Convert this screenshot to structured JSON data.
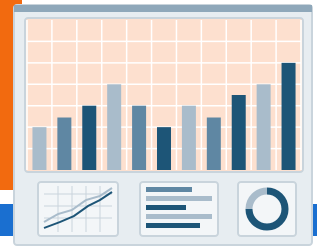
{
  "chart_data": {
    "type": "bar",
    "values": [
      2,
      2.45,
      3,
      4,
      3,
      2,
      3,
      2.45,
      3.5,
      4,
      5
    ],
    "colors": [
      "#a9bccb",
      "#5f87a3",
      "#1d5577",
      "#a9bccb",
      "#5f87a3",
      "#1d5577",
      "#a9bccb",
      "#5f87a3",
      "#1d5577",
      "#a9bccb",
      "#1d5577"
    ],
    "ylim": [
      0,
      7
    ],
    "grid": true
  }
}
